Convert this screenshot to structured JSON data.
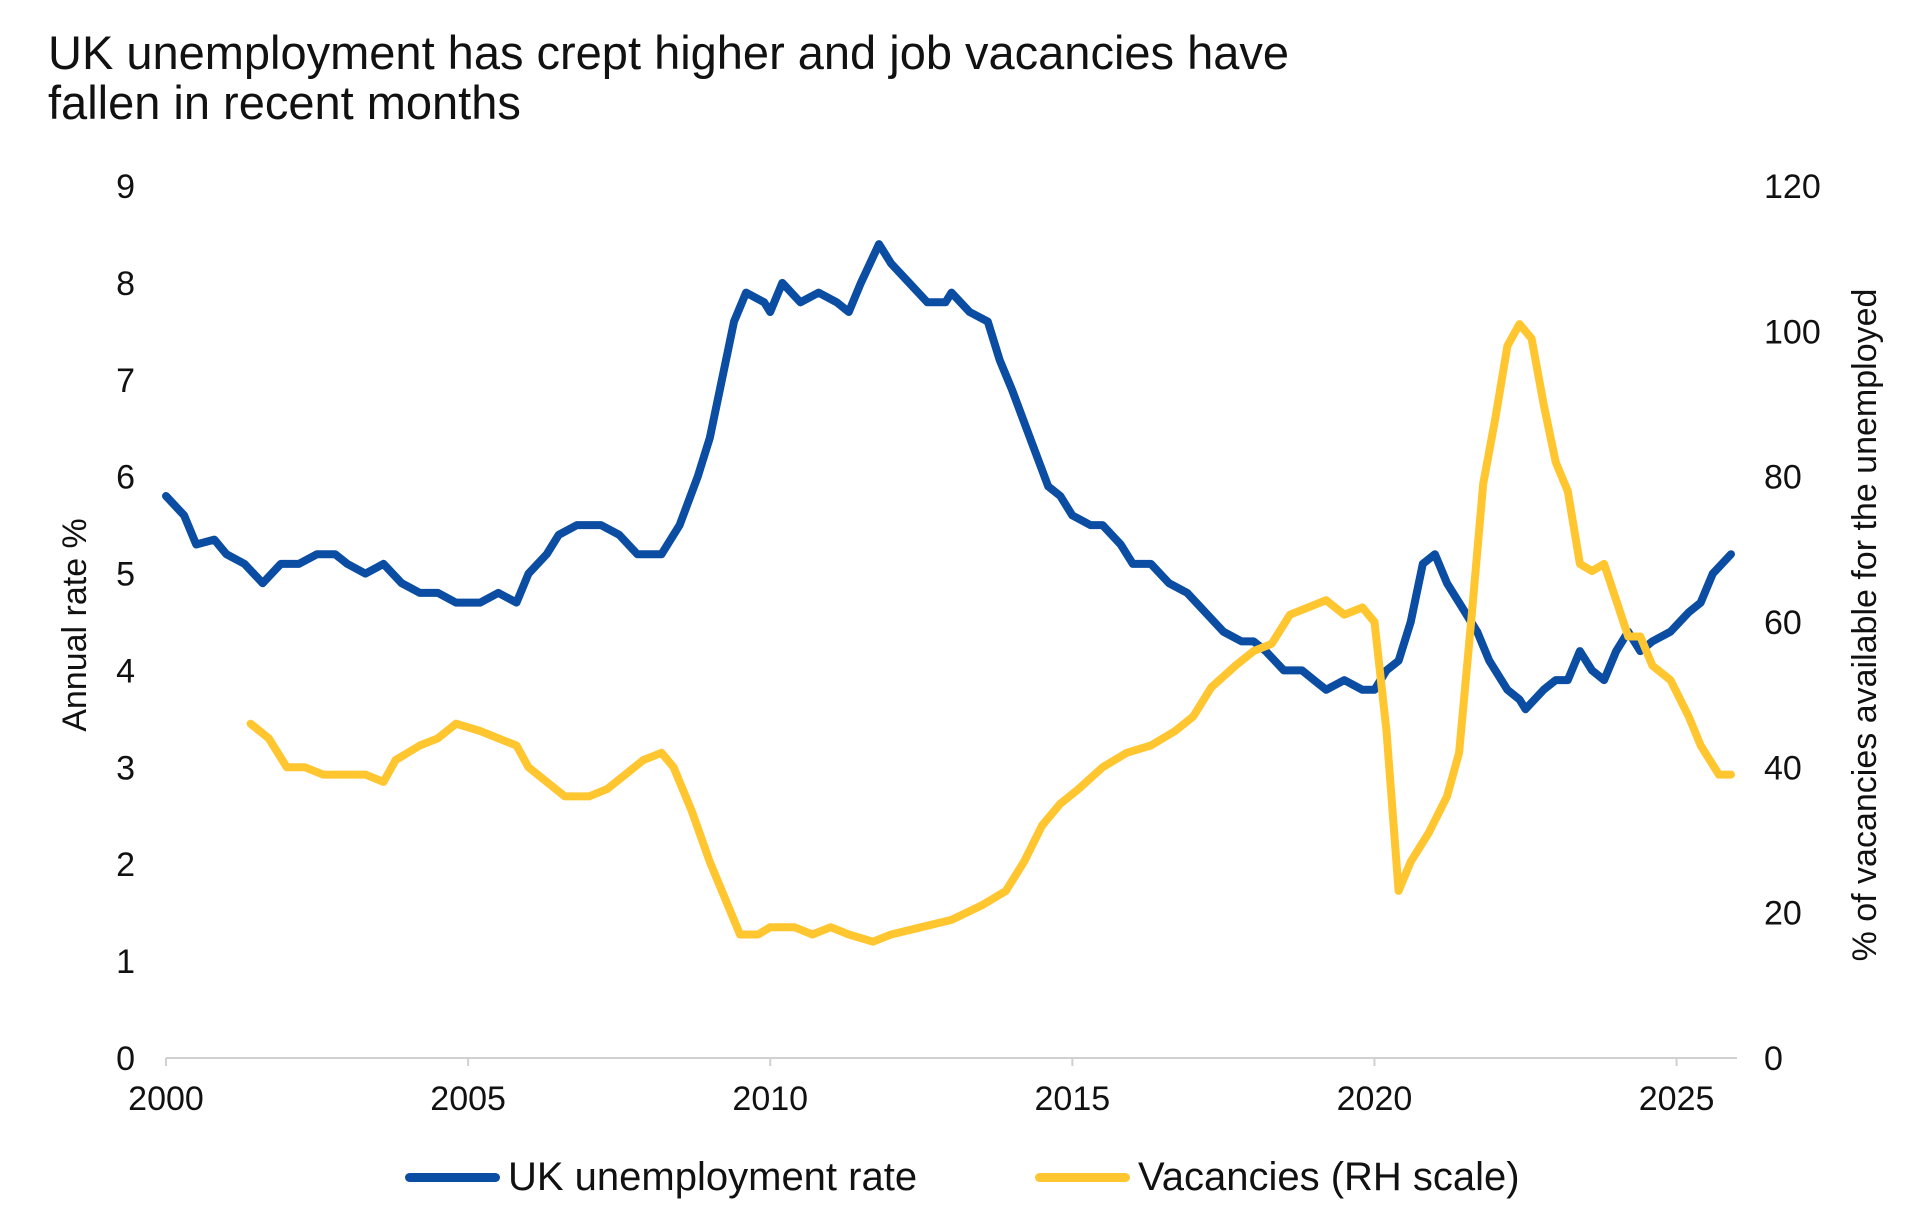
{
  "title_lines": [
    "UK unemployment has crept higher and job vacancies have",
    "fallen in recent months"
  ],
  "chart_data": {
    "type": "line",
    "title": "UK unemployment has crept higher and job vacancies have fallen in recent months",
    "xlabel": "",
    "ylabel": "Annual rate %",
    "y2label": "% of vacancies available for the unemployed",
    "xlim": [
      2000,
      2026
    ],
    "ylim": [
      0,
      9
    ],
    "y2lim": [
      0,
      120
    ],
    "xticks": [
      "2000",
      "2005",
      "2010",
      "2015",
      "2020",
      "2025"
    ],
    "yticks": [
      "0",
      "1",
      "2",
      "3",
      "4",
      "5",
      "6",
      "7",
      "8",
      "9"
    ],
    "y2ticks": [
      "0",
      "20",
      "40",
      "60",
      "80",
      "100",
      "120"
    ],
    "grid": false,
    "legend_position": "bottom",
    "series": [
      {
        "name": "UK unemployment rate",
        "axis": "left",
        "color": "#0A4DA2",
        "x": [
          2000.0,
          2000.3,
          2000.5,
          2000.8,
          2001.0,
          2001.3,
          2001.6,
          2001.9,
          2002.2,
          2002.5,
          2002.8,
          2003.0,
          2003.3,
          2003.6,
          2003.9,
          2004.2,
          2004.5,
          2004.8,
          2005.2,
          2005.5,
          2005.8,
          2006.0,
          2006.3,
          2006.5,
          2006.8,
          2007.2,
          2007.5,
          2007.8,
          2008.2,
          2008.5,
          2008.8,
          2009.0,
          2009.2,
          2009.4,
          2009.6,
          2009.9,
          2010.0,
          2010.2,
          2010.5,
          2010.8,
          2011.1,
          2011.3,
          2011.5,
          2011.8,
          2012.0,
          2012.3,
          2012.6,
          2012.9,
          2013.0,
          2013.3,
          2013.6,
          2013.8,
          2014.0,
          2014.3,
          2014.6,
          2014.8,
          2015.0,
          2015.3,
          2015.5,
          2015.8,
          2016.0,
          2016.3,
          2016.6,
          2016.9,
          2017.2,
          2017.5,
          2017.8,
          2018.0,
          2018.2,
          2018.5,
          2018.8,
          2019.0,
          2019.2,
          2019.5,
          2019.8,
          2020.0,
          2020.2,
          2020.4,
          2020.6,
          2020.8,
          2021.0,
          2021.2,
          2021.4,
          2021.7,
          2021.9,
          2022.2,
          2022.4,
          2022.5,
          2022.8,
          2023.0,
          2023.2,
          2023.4,
          2023.6,
          2023.8,
          2024.0,
          2024.2,
          2024.4,
          2024.6,
          2024.9,
          2025.2,
          2025.4,
          2025.6,
          2025.9
        ],
        "values": [
          5.8,
          5.6,
          5.3,
          5.35,
          5.2,
          5.1,
          4.9,
          5.1,
          5.1,
          5.2,
          5.2,
          5.1,
          5.0,
          5.1,
          4.9,
          4.8,
          4.8,
          4.7,
          4.7,
          4.8,
          4.7,
          5.0,
          5.2,
          5.4,
          5.5,
          5.5,
          5.4,
          5.2,
          5.2,
          5.5,
          6.0,
          6.4,
          7.0,
          7.6,
          7.9,
          7.8,
          7.7,
          8.0,
          7.8,
          7.9,
          7.8,
          7.7,
          8.0,
          8.4,
          8.2,
          8.0,
          7.8,
          7.8,
          7.9,
          7.7,
          7.6,
          7.2,
          6.9,
          6.4,
          5.9,
          5.8,
          5.6,
          5.5,
          5.5,
          5.3,
          5.1,
          5.1,
          4.9,
          4.8,
          4.6,
          4.4,
          4.3,
          4.3,
          4.2,
          4.0,
          4.0,
          3.9,
          3.8,
          3.9,
          3.8,
          3.8,
          4.0,
          4.1,
          4.5,
          5.1,
          5.2,
          4.9,
          4.7,
          4.4,
          4.1,
          3.8,
          3.7,
          3.6,
          3.8,
          3.9,
          3.9,
          4.2,
          4.0,
          3.9,
          4.2,
          4.4,
          4.2,
          4.3,
          4.4,
          4.6,
          4.7,
          5.0,
          5.2
        ]
      },
      {
        "name": "Vacancies (RH scale)",
        "axis": "right",
        "color": "#FFC62F",
        "x": [
          2001.4,
          2001.7,
          2002.0,
          2002.3,
          2002.6,
          2003.0,
          2003.3,
          2003.6,
          2003.8,
          2004.2,
          2004.5,
          2004.8,
          2005.2,
          2005.5,
          2005.8,
          2006.0,
          2006.3,
          2006.6,
          2007.0,
          2007.3,
          2007.6,
          2007.9,
          2008.2,
          2008.4,
          2008.7,
          2009.0,
          2009.3,
          2009.5,
          2009.8,
          2010.0,
          2010.4,
          2010.7,
          2011.0,
          2011.3,
          2011.7,
          2012.0,
          2012.5,
          2013.0,
          2013.5,
          2013.9,
          2014.2,
          2014.5,
          2014.8,
          2015.1,
          2015.5,
          2015.9,
          2016.3,
          2016.7,
          2017.0,
          2017.3,
          2017.7,
          2018.0,
          2018.3,
          2018.6,
          2018.9,
          2019.2,
          2019.5,
          2019.8,
          2020.0,
          2020.2,
          2020.4,
          2020.6,
          2020.9,
          2021.2,
          2021.4,
          2021.6,
          2021.8,
          2022.0,
          2022.2,
          2022.4,
          2022.6,
          2022.8,
          2023.0,
          2023.2,
          2023.4,
          2023.6,
          2023.8,
          2024.0,
          2024.2,
          2024.4,
          2024.6,
          2024.9,
          2025.2,
          2025.4,
          2025.7,
          2025.9
        ],
        "values": [
          46,
          44,
          40,
          40,
          39,
          39,
          39,
          38,
          41,
          43,
          44,
          46,
          45,
          44,
          43,
          40,
          38,
          36,
          36,
          37,
          39,
          41,
          42,
          40,
          34,
          27,
          21,
          17,
          17,
          18,
          18,
          17,
          18,
          17,
          16,
          17,
          18,
          19,
          21,
          23,
          27,
          32,
          35,
          37,
          40,
          42,
          43,
          45,
          47,
          51,
          54,
          56,
          57,
          61,
          62,
          63,
          61,
          62,
          60,
          45,
          23,
          27,
          31,
          36,
          42,
          60,
          79,
          88,
          98,
          101,
          99,
          90,
          82,
          78,
          68,
          67,
          68,
          63,
          58,
          58,
          54,
          52,
          47,
          43,
          39,
          39
        ]
      }
    ]
  }
}
